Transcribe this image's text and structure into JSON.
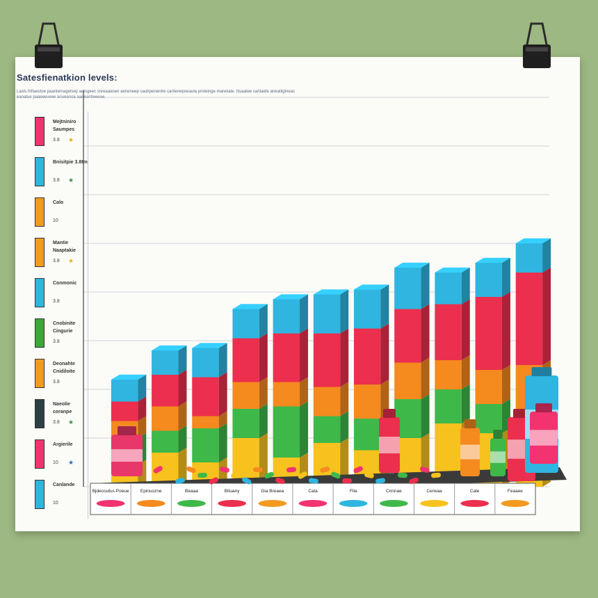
{
  "title": "Satesfienatkion levels:",
  "subtitle": "Lasts fnfiaestoe paantemagetsey aetsgeec snreaaeoen aeneneep cautrpenentre cantenepoeauta proteinge manetate. Itsaaiiee cantaete aneatiigineas eanatue paaeeeveee anueanoa aaeeantieeeae.",
  "legend": [
    {
      "label": "Mejtniniro Saumpes",
      "score": "3.8",
      "star": "★",
      "color": "#f2336f",
      "star_color": "#e8b400"
    },
    {
      "label": "Bnisitpie 3.8tm",
      "score": "3.8",
      "star": "★",
      "color": "#2fb5e0",
      "star_color": "#3c8f4a"
    },
    {
      "label": "Calo",
      "score": "10",
      "star": "",
      "color": "#f39a21",
      "star_color": "#e8b400"
    },
    {
      "label": "Mantie Naaptakie",
      "score": "3.8",
      "star": "★",
      "color": "#f39a21",
      "star_color": "#e8b400"
    },
    {
      "label": "Conmonic",
      "score": "3.8",
      "star": "",
      "color": "#2fb5e0",
      "star_color": "#3c8f4a"
    },
    {
      "label": "Cnobinite Cingurie",
      "score": "3.8",
      "star": "",
      "color": "#3aa838",
      "star_color": "#3c8f4a"
    },
    {
      "label": "Deonahte Cnidiloite",
      "score": "3.8",
      "star": "",
      "color": "#f39a21",
      "star_color": "#e8b400"
    },
    {
      "label": "Naeolie coranpe",
      "score": "3.8",
      "star": "★",
      "color": "#2b3f45",
      "star_color": "#3c8f4a"
    },
    {
      "label": "Argierile",
      "score": "10",
      "star": "★",
      "color": "#f2336f",
      "star_color": "#2c66c4"
    },
    {
      "label": "Canlande",
      "score": "10",
      "star": "",
      "color": "#2fb5e0",
      "star_color": "#e8b400"
    }
  ],
  "colors": {
    "top": "#2fb5e0",
    "upper": "#ec2f4e",
    "orange": "#f58a1f",
    "green": "#3fb84a",
    "yellow": "#f7c21e",
    "pink": "#f2336f",
    "axis": "#444444",
    "grid": "#cfd3d8"
  },
  "chart_data": {
    "type": "bar",
    "stacked": true,
    "title": "Satesfienatkion levels:",
    "categories": [
      "Bjdecoutus Poeue",
      "Epinuozne",
      "Beaaa",
      "Bituany",
      "Gia Breaea",
      "Cala",
      "Fila",
      "Cnnnae",
      "Cerwaa",
      "Cale",
      "Feaaee"
    ],
    "segment_order": [
      "yellow",
      "green",
      "orange",
      "upper",
      "top"
    ],
    "series": [
      {
        "name": "",
        "color": "yellow",
        "values": [
          9,
          14,
          10,
          20,
          12,
          18,
          15,
          20,
          26,
          22,
          24
        ]
      },
      {
        "name": "",
        "color": "green",
        "values": [
          11,
          9,
          14,
          12,
          21,
          11,
          13,
          16,
          14,
          12,
          8
        ]
      },
      {
        "name": "",
        "color": "orange",
        "values": [
          7,
          10,
          5,
          11,
          10,
          12,
          14,
          15,
          12,
          14,
          18
        ]
      },
      {
        "name": "",
        "color": "upper",
        "values": [
          8,
          13,
          16,
          18,
          20,
          22,
          23,
          22,
          23,
          30,
          38
        ]
      },
      {
        "name": "",
        "color": "top",
        "values": [
          9,
          10,
          12,
          12,
          14,
          16,
          16,
          17,
          13,
          14,
          12
        ]
      }
    ],
    "ylim": [
      0,
      160
    ],
    "grid": true
  }
}
